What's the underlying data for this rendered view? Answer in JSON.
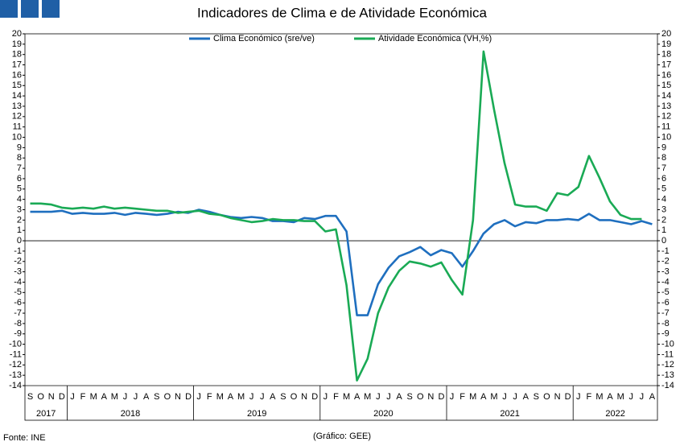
{
  "header": {
    "source": "Fonte: INE",
    "credit": "(Gráfico: GEE)"
  },
  "chart_data": {
    "type": "line",
    "title": "Indicadores de Clima e de Atividade Económica",
    "legend": "top",
    "categories": [
      "S",
      "O",
      "N",
      "D",
      "J",
      "F",
      "M",
      "A",
      "M",
      "J",
      "J",
      "A",
      "S",
      "O",
      "N",
      "D",
      "J",
      "F",
      "M",
      "A",
      "M",
      "J",
      "J",
      "A",
      "S",
      "O",
      "N",
      "D",
      "J",
      "F",
      "M",
      "A",
      "M",
      "J",
      "J",
      "A",
      "S",
      "O",
      "N",
      "D",
      "J",
      "F",
      "M",
      "A",
      "M",
      "J",
      "J",
      "A",
      "S",
      "O",
      "N",
      "D",
      "J",
      "F",
      "M",
      "A",
      "M",
      "J",
      "J",
      "A"
    ],
    "year_labels": [
      "2017",
      "2018",
      "2019",
      "2020",
      "2021",
      "2022"
    ],
    "series": [
      {
        "name": "Clima Económico (sre/ve)",
        "color": "#1f6fbf",
        "values": [
          2.8,
          2.8,
          2.8,
          2.9,
          2.6,
          2.7,
          2.6,
          2.6,
          2.7,
          2.5,
          2.7,
          2.6,
          2.5,
          2.6,
          2.8,
          2.7,
          3.0,
          2.8,
          2.5,
          2.3,
          2.2,
          2.3,
          2.2,
          1.9,
          1.9,
          1.8,
          2.2,
          2.1,
          2.4,
          2.4,
          0.9,
          -7.2,
          -7.2,
          -4.2,
          -2.6,
          -1.5,
          -1.1,
          -0.6,
          -1.4,
          -0.9,
          -1.2,
          -2.5,
          -1.0,
          0.7,
          1.6,
          2.0,
          1.4,
          1.8,
          1.7,
          2.0,
          2.0,
          2.1,
          2.0,
          2.6,
          2.0,
          2.0,
          1.8,
          1.6,
          1.9,
          1.6
        ]
      },
      {
        "name": "Atividade Económica (VH,%)",
        "color": "#1aaa55",
        "values": [
          3.6,
          3.6,
          3.5,
          3.2,
          3.1,
          3.2,
          3.1,
          3.3,
          3.1,
          3.2,
          3.1,
          3.0,
          2.9,
          2.9,
          2.7,
          2.8,
          2.9,
          2.6,
          2.5,
          2.2,
          2.0,
          1.8,
          1.9,
          2.1,
          2.0,
          2.0,
          1.9,
          1.9,
          0.9,
          1.1,
          -4.3,
          -13.5,
          -11.4,
          -7.0,
          -4.5,
          -2.9,
          -2.0,
          -2.2,
          -2.5,
          -2.1,
          -3.8,
          -5.2,
          2.0,
          18.3,
          12.7,
          7.5,
          3.5,
          3.3,
          3.3,
          2.9,
          4.6,
          4.4,
          5.2,
          8.2,
          6.1,
          3.8,
          2.5,
          2.1,
          2.1,
          null
        ]
      }
    ],
    "ylim": [
      -14,
      20
    ],
    "yticks": [
      -14,
      -13,
      -12,
      -11,
      -10,
      -9,
      -8,
      -7,
      -6,
      -5,
      -4,
      -3,
      -2,
      -1,
      0,
      1,
      2,
      3,
      4,
      5,
      6,
      7,
      8,
      9,
      10,
      11,
      12,
      13,
      14,
      15,
      16,
      17,
      18,
      19,
      20
    ],
    "y2lim": [
      -14,
      20
    ],
    "y2ticks": [
      -14,
      -13,
      -12,
      -11,
      -10,
      -9,
      -8,
      -7,
      -6,
      -5,
      -4,
      -3,
      -2,
      -1,
      0,
      1,
      2,
      3,
      4,
      5,
      6,
      7,
      8,
      9,
      10,
      11,
      12,
      13,
      14,
      15,
      16,
      17,
      18,
      19,
      20
    ]
  }
}
